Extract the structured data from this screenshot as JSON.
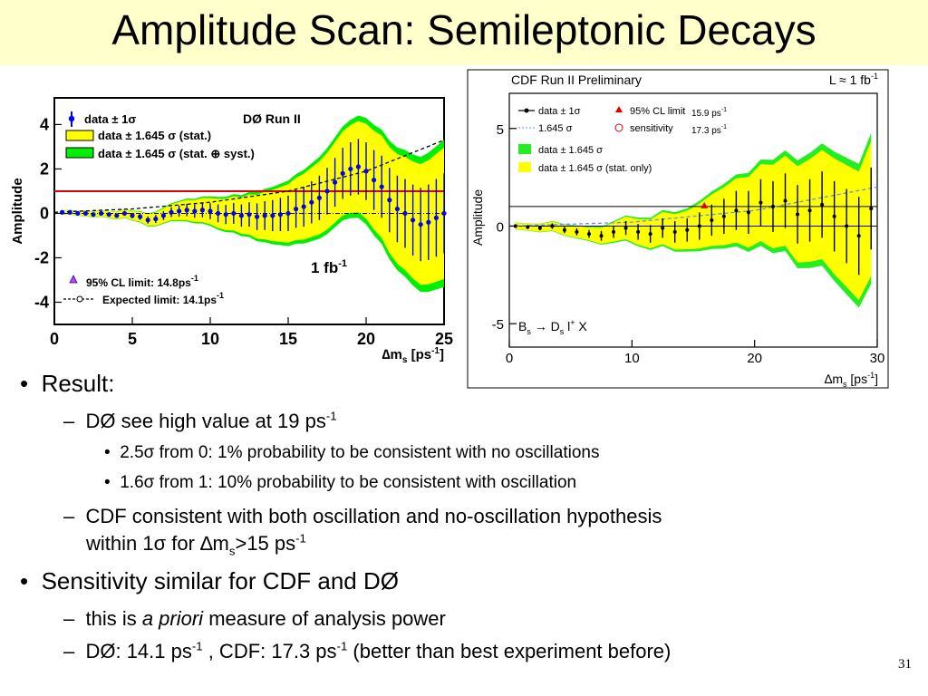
{
  "slide": {
    "title": "Amplitude Scan: Semileptonic Decays",
    "page_number": "31"
  },
  "bullets": {
    "b1": "Result:",
    "b1_1_a": "DØ see high value at 19 ps",
    "b1_1_sup": "-1",
    "b1_1_1_a": "2.5",
    "b1_1_1_sym": "σ",
    "b1_1_1_b": " from 0: 1% probability to be consistent with no oscillations",
    "b1_1_2_a": "1.6",
    "b1_1_2_sym": "σ",
    "b1_1_2_b": " from 1: 10% probability to be consistent with oscillation",
    "b1_2_line1": "CDF consistent with both oscillation and no-oscillation hypothesis",
    "b1_2_line2_a": "within 1",
    "b1_2_line2_sym": "σ",
    "b1_2_line2_b": " for ",
    "b1_2_line2_delta": "∆m",
    "b1_2_line2_sub": "s",
    "b1_2_line2_gt": ">15 ps",
    "b1_2_line2_sup": "-1",
    "b2": "Sensitivity similar for CDF and DØ",
    "b2_1_a": "this is ",
    "b2_1_em": "a priori",
    "b2_1_b": " measure of analysis power",
    "b2_2_a": "DØ: 14.1 ps",
    "b2_2_sup1": "-1",
    "b2_2_b": " , CDF: 17.3 ps",
    "b2_2_sup2": "-1",
    "b2_2_c": " (better than best experiment before)"
  },
  "chart_data": [
    {
      "type": "scatter",
      "experiment_label": "DØ Run II",
      "lumi_label": "1 fb",
      "lumi_sup": "-1",
      "ylabel": "Amplitude",
      "xlabel": "∆m",
      "xlabel_sub": "s",
      "xlabel_unit": " [ps",
      "xlabel_sup": "-1",
      "xlabel_end": "]",
      "xlim": [
        0,
        25
      ],
      "ylim": [
        -5,
        5.2
      ],
      "x_ticks": [
        0,
        5,
        10,
        15,
        20,
        25
      ],
      "y_ticks": [
        -4,
        -2,
        0,
        2,
        4
      ],
      "legend": {
        "data": "data ± 1σ",
        "stat": "data ± 1.645 σ (stat.)",
        "syst": "data ± 1.645 σ (stat. ⊕ syst.)",
        "cl_limit": "95% CL limit: 14.8ps",
        "cl_sup": "-1",
        "expected": "Expected limit: 14.1ps",
        "expected_sup": "-1"
      },
      "colors": {
        "stat_band": "#ffff00",
        "syst_band": "#00ee00",
        "unity_line": "#dd0000",
        "points": "#0000ff"
      },
      "x": [
        0.5,
        1.0,
        1.5,
        2.0,
        2.5,
        3.0,
        3.5,
        4.0,
        4.5,
        5.0,
        5.5,
        6.0,
        6.5,
        7.0,
        7.5,
        8.0,
        8.5,
        9.0,
        9.5,
        10.0,
        10.5,
        11.0,
        11.5,
        12.0,
        12.5,
        13.0,
        13.5,
        14.0,
        14.5,
        15.0,
        15.5,
        16.0,
        16.5,
        17.0,
        17.5,
        18.0,
        18.5,
        19.0,
        19.5,
        20.0,
        20.5,
        21.0,
        21.5,
        22.0,
        22.5,
        23.0,
        23.5,
        24.0,
        24.5,
        25.0
      ],
      "y": [
        0.05,
        0.05,
        0.0,
        0.0,
        -0.05,
        0.0,
        -0.05,
        -0.1,
        0.0,
        -0.1,
        -0.15,
        -0.3,
        -0.25,
        -0.1,
        0.05,
        0.1,
        0.15,
        0.1,
        0.15,
        0.1,
        0.0,
        -0.05,
        0.0,
        -0.1,
        -0.05,
        -0.15,
        -0.1,
        -0.1,
        -0.05,
        0.0,
        0.2,
        0.3,
        0.5,
        0.7,
        1.0,
        1.4,
        1.8,
        2.0,
        2.1,
        1.9,
        1.5,
        1.2,
        0.6,
        0.2,
        0.0,
        -0.3,
        -0.5,
        -0.4,
        -0.2,
        0.0
      ],
      "err1": [
        0.05,
        0.06,
        0.06,
        0.07,
        0.08,
        0.08,
        0.09,
        0.1,
        0.11,
        0.12,
        0.14,
        0.16,
        0.18,
        0.2,
        0.22,
        0.25,
        0.28,
        0.3,
        0.33,
        0.36,
        0.4,
        0.43,
        0.47,
        0.5,
        0.55,
        0.6,
        0.65,
        0.7,
        0.75,
        0.8,
        0.85,
        0.9,
        0.95,
        1.0,
        1.05,
        1.1,
        1.15,
        1.2,
        1.25,
        1.3,
        1.35,
        1.4,
        1.45,
        1.5,
        1.55,
        1.6,
        1.65,
        1.7,
        1.75,
        1.8
      ],
      "expected_x": [
        0,
        5,
        10,
        15,
        20,
        25
      ],
      "expected_y": [
        0.05,
        0.2,
        0.5,
        1.0,
        1.9,
        3.3
      ]
    },
    {
      "type": "scatter",
      "experiment_label": "CDF Run II Preliminary",
      "lumi_label": "L ≈ 1 fb",
      "lumi_sup": "-1",
      "decay_label": "B",
      "decay_label_rest": "s",
      "decay_label_arrow": " → D",
      "decay_label_ds": "s",
      "decay_label_end": " l",
      "decay_label_plus": "+",
      "decay_label_x": " X",
      "ylabel": "Amplitude",
      "xlabel": "∆m",
      "xlabel_sub": "s",
      "xlabel_unit": " [ps",
      "xlabel_sup": "-1",
      "xlabel_end": "]",
      "xlim": [
        0,
        30
      ],
      "ylim": [
        -6.2,
        6.8
      ],
      "x_ticks": [
        0,
        10,
        20,
        30
      ],
      "y_ticks": [
        -5,
        0,
        5
      ],
      "legend": {
        "data": "data ± 1σ",
        "cl": "95% CL limit",
        "cl_val": "15.9 ps",
        "cl_sup": "-1",
        "sens_line": "1.645 σ",
        "sens": "sensitivity",
        "sens_val": "17.3 ps",
        "sens_sup": "-1",
        "green": "data ± 1.645 σ",
        "yellow": "data ± 1.645 σ (stat. only)"
      },
      "colors": {
        "stat_band": "#ffff00",
        "syst_band": "#22ee22",
        "cl_marker": "#dd0000",
        "sens_line": "#6688ff"
      },
      "x": [
        0.5,
        1.5,
        2.5,
        3.5,
        4.5,
        5.5,
        6.5,
        7.5,
        8.5,
        9.5,
        10.5,
        11.5,
        12.5,
        13.5,
        14.5,
        15.5,
        16.5,
        17.5,
        18.5,
        19.5,
        20.5,
        21.5,
        22.5,
        23.5,
        24.5,
        25.5,
        26.5,
        27.5,
        28.5,
        29.5
      ],
      "y": [
        0.0,
        -0.05,
        -0.1,
        0.0,
        -0.2,
        -0.3,
        -0.4,
        -0.5,
        -0.3,
        -0.1,
        -0.3,
        -0.4,
        -0.1,
        -0.3,
        -0.2,
        0.0,
        0.3,
        0.5,
        0.8,
        0.7,
        1.2,
        1.0,
        1.3,
        0.6,
        0.8,
        1.1,
        0.5,
        0.0,
        -0.5,
        0.9
      ],
      "err1": [
        0.1,
        0.1,
        0.12,
        0.14,
        0.16,
        0.18,
        0.2,
        0.25,
        0.3,
        0.35,
        0.4,
        0.45,
        0.5,
        0.55,
        0.6,
        0.7,
        0.8,
        0.9,
        1.0,
        1.1,
        1.2,
        1.3,
        1.4,
        1.5,
        1.6,
        1.7,
        1.8,
        1.9,
        2.0,
        2.1
      ],
      "sens_x": [
        0,
        10,
        20,
        30
      ],
      "sens_y": [
        0.0,
        0.2,
        0.8,
        2.0
      ]
    }
  ]
}
